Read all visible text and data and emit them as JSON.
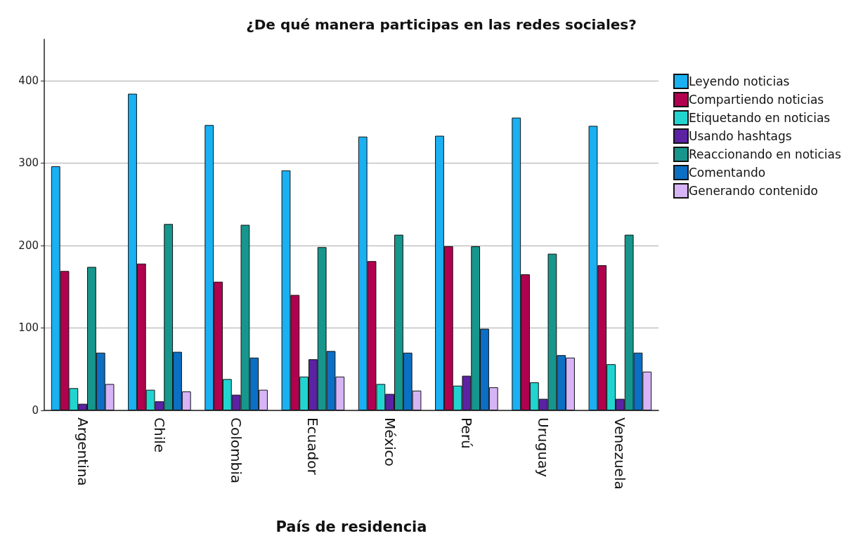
{
  "chart_data": {
    "type": "bar",
    "title": "¿De qué manera participas en las redes sociales?",
    "xlabel": "País de residencia",
    "categories": [
      "Argentina",
      "Chile",
      "Colombia",
      "Ecuador",
      "México",
      "Perú",
      "Uruguay",
      "Venezuela"
    ],
    "series": [
      {
        "name": "Leyendo noticias",
        "color": "#1ab0f2",
        "values": [
          296,
          384,
          346,
          291,
          332,
          333,
          355,
          345
        ]
      },
      {
        "name": "Compartiendo noticias",
        "color": "#b0004e",
        "values": [
          169,
          178,
          156,
          140,
          181,
          199,
          165,
          176
        ]
      },
      {
        "name": "Etiquetando en noticias",
        "color": "#22d4d0",
        "values": [
          27,
          25,
          38,
          41,
          32,
          30,
          34,
          56
        ]
      },
      {
        "name": "Usando hashtags",
        "color": "#5c22a4",
        "values": [
          8,
          11,
          19,
          62,
          20,
          42,
          14,
          14
        ]
      },
      {
        "name": "Reaccionando en noticias",
        "color": "#16968c",
        "values": [
          174,
          226,
          225,
          198,
          213,
          199,
          190,
          213
        ]
      },
      {
        "name": "Comentando",
        "color": "#0b6fc4",
        "values": [
          70,
          71,
          64,
          72,
          70,
          99,
          67,
          70
        ]
      },
      {
        "name": "Generando contenido",
        "color": "#d6b4f6",
        "values": [
          32,
          23,
          25,
          41,
          24,
          28,
          64,
          47
        ]
      }
    ],
    "ylim": [
      0,
      450
    ],
    "yticks": [
      0,
      100,
      200,
      300,
      400
    ],
    "grid": "y",
    "legend": "top right"
  }
}
